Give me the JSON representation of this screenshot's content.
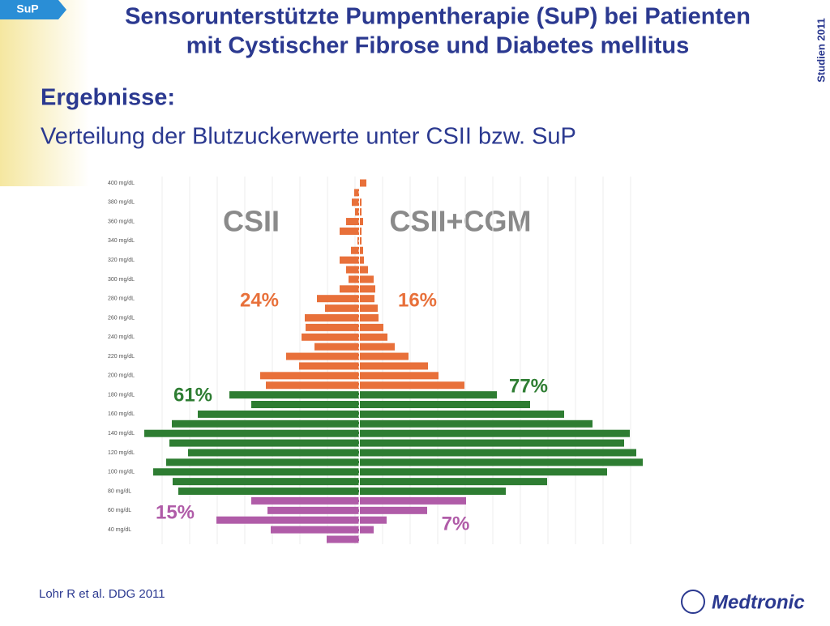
{
  "slide": {
    "tag": "SuP",
    "title_line1": "Sensorunterstützte Pumpentherapie (SuP) bei Patienten",
    "title_line2": "mit Cystischer Fibrose und Diabetes mellitus",
    "side_note": "Studien 2011",
    "heading": "Ergebnisse:",
    "subheading": "Verteilung der Blutzuckerwerte unter CSII bzw. SuP",
    "source": "Lohr R et al. DDG 2011",
    "logo": "Medtronic"
  },
  "chart_data": {
    "type": "pyramid",
    "left_title": "CSII",
    "right_title": "CSII+CGM",
    "categories": [
      "400 mg/dL",
      null,
      "380 mg/dL",
      null,
      "360 mg/dL",
      null,
      "340 mg/dL",
      null,
      "320 mg/dL",
      null,
      "300 mg/dL",
      null,
      "280 mg/dL",
      null,
      "260 mg/dL",
      null,
      "240 mg/dL",
      null,
      "220 mg/dL",
      null,
      "200 mg/dL",
      null,
      "180 mg/dL",
      null,
      "160 mg/dL",
      null,
      "140 mg/dL",
      null,
      "120 mg/dL",
      null,
      "100 mg/dL",
      null,
      "80 mg/dL",
      null,
      "60 mg/dL",
      null,
      "40 mg/dL",
      null
    ],
    "series": [
      {
        "name": "CSII",
        "values": [
          0,
          0.6,
          0.9,
          0.5,
          1.6,
          2.4,
          0.2,
          1.0,
          2.4,
          1.6,
          1.3,
          2.4,
          5.2,
          4.2,
          6.7,
          6.6,
          7.1,
          5.5,
          9.0,
          7.4,
          12.2,
          11.5,
          16.0,
          13.3,
          19.9,
          23.1,
          26.5,
          23.4,
          21.1,
          23.8,
          25.4,
          23.0,
          22.3,
          13.3,
          11.3,
          17.6,
          10.9,
          4.0
        ]
      },
      {
        "name": "CSII+CGM",
        "values": [
          0.8,
          0,
          0.2,
          0.2,
          0.4,
          0.2,
          0.2,
          0.4,
          0.5,
          1.0,
          1.7,
          1.9,
          1.8,
          2.2,
          2.3,
          2.9,
          3.4,
          4.3,
          6.0,
          8.4,
          9.7,
          12.9,
          16.9,
          21.0,
          25.2,
          28.7,
          33.3,
          32.6,
          34.1,
          34.9,
          30.5,
          23.1,
          18.0,
          13.1,
          8.3,
          3.3,
          1.7,
          0
        ]
      }
    ],
    "bar_colors": [
      "#e8703a",
      "#e8703a",
      "#e8703a",
      "#e8703a",
      "#e8703a",
      "#e8703a",
      "#e8703a",
      "#e8703a",
      "#e8703a",
      "#e8703a",
      "#e8703a",
      "#e8703a",
      "#e8703a",
      "#e8703a",
      "#e8703a",
      "#e8703a",
      "#e8703a",
      "#e8703a",
      "#e8703a",
      "#e8703a",
      "#e8703a",
      "#e8703a",
      "#2e7d32",
      "#2e7d32",
      "#2e7d32",
      "#2e7d32",
      "#2e7d32",
      "#2e7d32",
      "#2e7d32",
      "#2e7d32",
      "#2e7d32",
      "#2e7d32",
      "#2e7d32",
      "#b05ca8",
      "#b05ca8",
      "#b05ca8",
      "#b05ca8",
      "#b05ca8"
    ],
    "xlim": [
      0,
      35
    ],
    "annotations": [
      {
        "text": "24%",
        "color": "#e8703a"
      },
      {
        "text": "16%",
        "color": "#e8703a"
      },
      {
        "text": "61%",
        "color": "#2e7d32"
      },
      {
        "text": "77%",
        "color": "#2e7d32"
      },
      {
        "text": "15%",
        "color": "#b05ca8"
      },
      {
        "text": "7%",
        "color": "#b05ca8"
      }
    ]
  }
}
